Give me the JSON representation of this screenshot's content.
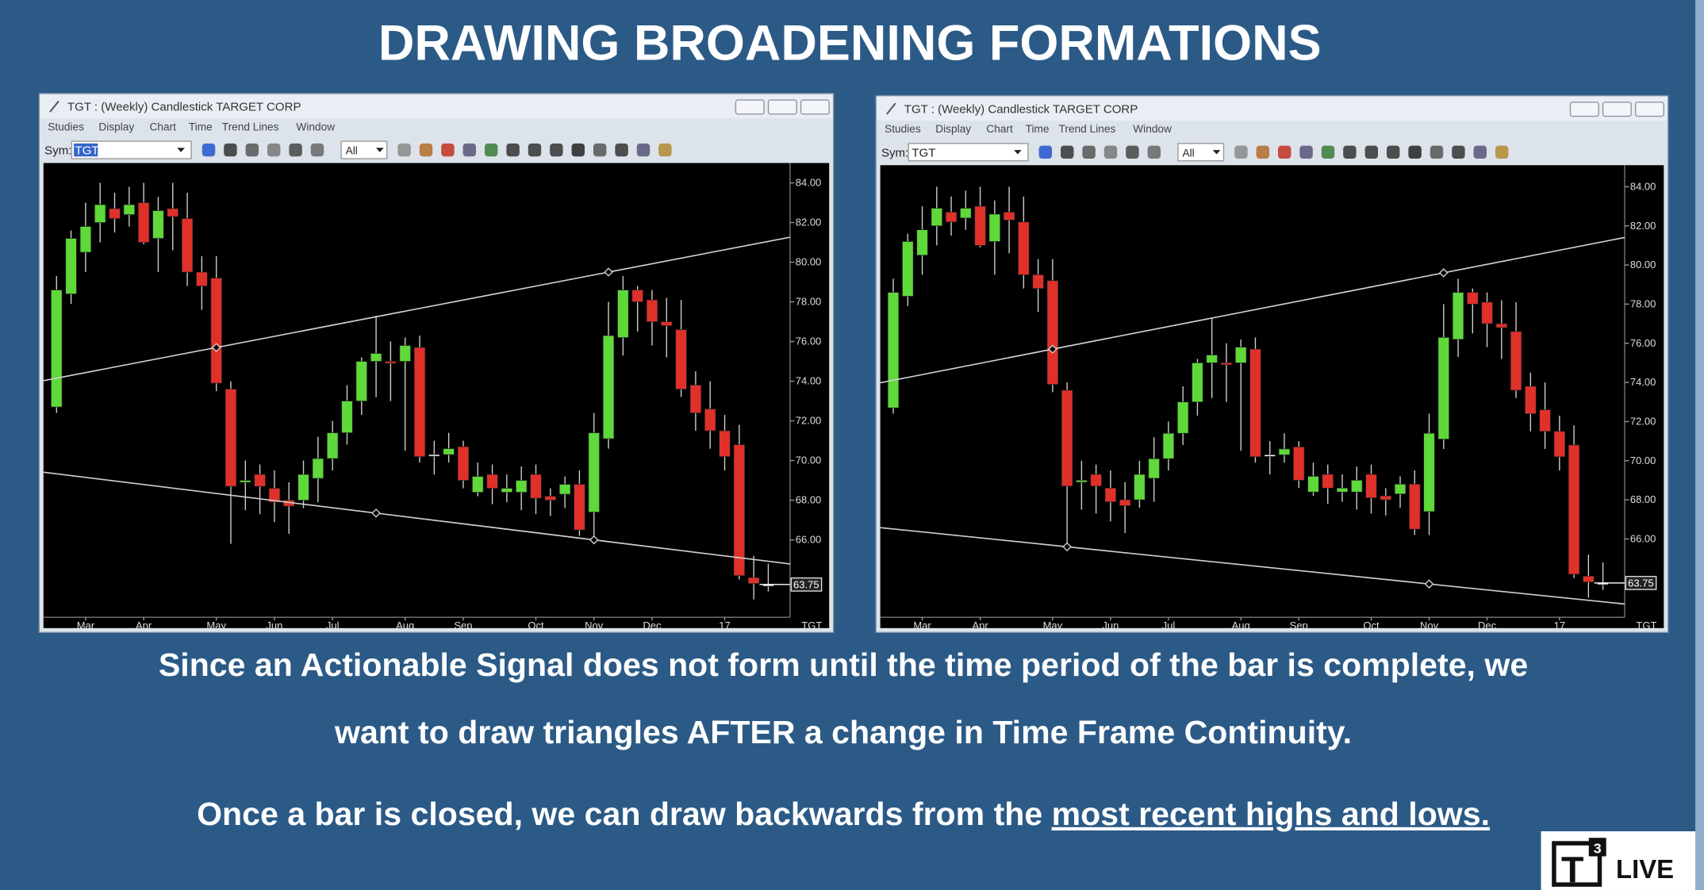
{
  "title": "DRAWING BROADENING FORMATIONS",
  "paragraphs": [
    {
      "lines": [
        "Since an Actionable Signal does not form until the time period of the bar is complete, we",
        "want to draw triangles AFTER a change in Time Frame Continuity."
      ]
    },
    {
      "text": "Once a bar is closed, we can draw backwards from the ",
      "underlined": "most recent highs and lows."
    }
  ],
  "logo": {
    "mark": "T",
    "superscript": "3",
    "text": "LIVE"
  },
  "chart_data": [
    {
      "type": "candlestick",
      "title": "TGT : (Weekly) Candlestick  TARGET CORP",
      "menu": [
        "Studies",
        "Display",
        "Chart",
        "Time",
        "Trend Lines",
        "Window"
      ],
      "symbol_label": "Sym:",
      "symbol": "TGT",
      "period": "All",
      "axis_symbol": "TGT",
      "up_color": "#5fd83a",
      "down_color": "#e0302a",
      "flat_color": "#ffffff",
      "line_color": "#d0d0d0",
      "categories": [
        null,
        null,
        "Mar",
        null,
        null,
        null,
        "Apr",
        null,
        null,
        null,
        null,
        "May",
        null,
        null,
        null,
        "Jun",
        null,
        null,
        null,
        "Jul",
        null,
        null,
        null,
        null,
        "Aug",
        null,
        null,
        null,
        "Sep",
        null,
        null,
        null,
        null,
        "Oct",
        null,
        null,
        null,
        "Nov",
        null,
        null,
        null,
        "Dec",
        null,
        null,
        null,
        null,
        "17",
        null,
        null,
        null
      ],
      "open": [
        72.7,
        78.4,
        80.5,
        82.0,
        82.7,
        82.4,
        83.0,
        81.2,
        82.7,
        82.2,
        79.5,
        79.2,
        73.6,
        68.9,
        69.3,
        68.6,
        68.0,
        68.0,
        69.1,
        70.1,
        71.4,
        73.0,
        75.0,
        75.0,
        75.0,
        75.7,
        70.3,
        70.3,
        70.7,
        68.4,
        69.3,
        68.4,
        68.4,
        69.3,
        68.2,
        68.3,
        68.8,
        67.4,
        71.1,
        76.2,
        78.6,
        78.1,
        77.0,
        76.6,
        73.8,
        72.6,
        71.5,
        70.8,
        64.1,
        63.75
      ],
      "high": [
        79.3,
        81.6,
        83.0,
        84.0,
        83.5,
        83.8,
        84.0,
        83.3,
        84.0,
        83.5,
        80.3,
        80.3,
        74.0,
        70.0,
        69.8,
        69.5,
        68.9,
        70.0,
        71.2,
        72.0,
        73.8,
        75.2,
        77.3,
        76.0,
        76.2,
        76.3,
        71.0,
        71.4,
        71.0,
        69.9,
        69.8,
        69.3,
        69.7,
        69.8,
        68.6,
        69.2,
        69.5,
        72.4,
        78.0,
        79.3,
        78.8,
        78.6,
        78.2,
        78.1,
        74.5,
        74.0,
        72.3,
        71.8,
        65.2,
        64.8
      ],
      "low": [
        72.4,
        77.9,
        79.5,
        81.0,
        81.5,
        81.8,
        80.9,
        79.5,
        80.6,
        78.8,
        77.6,
        73.5,
        65.8,
        67.5,
        67.3,
        66.9,
        66.3,
        67.6,
        67.9,
        69.5,
        70.8,
        72.3,
        73.2,
        73.0,
        70.5,
        69.9,
        69.3,
        69.9,
        68.6,
        68.2,
        67.8,
        67.9,
        67.5,
        67.3,
        67.2,
        67.6,
        66.2,
        66.2,
        70.6,
        75.3,
        76.5,
        75.8,
        75.2,
        73.2,
        71.5,
        70.6,
        69.5,
        64.0,
        63.0,
        63.4
      ],
      "close": [
        78.6,
        81.2,
        81.8,
        82.9,
        82.2,
        82.9,
        81.0,
        82.6,
        82.3,
        79.5,
        78.8,
        73.9,
        68.7,
        69.0,
        68.7,
        67.9,
        67.7,
        69.3,
        70.1,
        71.4,
        73.0,
        75.0,
        75.4,
        74.9,
        75.8,
        70.2,
        70.3,
        70.6,
        69.0,
        69.2,
        68.6,
        68.6,
        69.0,
        68.1,
        68.0,
        68.8,
        66.5,
        71.4,
        76.3,
        78.6,
        78.0,
        77.0,
        76.8,
        73.6,
        72.4,
        71.5,
        70.2,
        64.2,
        63.8,
        63.75
      ],
      "ylim": [
        62.1,
        85.0
      ],
      "yticks": [
        {
          "value": 66,
          "label": "66.00"
        },
        {
          "value": 68,
          "label": "68.00"
        },
        {
          "value": 70,
          "label": "70.00"
        },
        {
          "value": 72,
          "label": "72.00"
        },
        {
          "value": 74,
          "label": "74.00"
        },
        {
          "value": 76,
          "label": "76.00"
        },
        {
          "value": 78,
          "label": "78.00"
        },
        {
          "value": 80,
          "label": "80.00"
        },
        {
          "value": 82,
          "label": "82.00"
        },
        {
          "value": 84,
          "label": "84.00"
        }
      ],
      "last_price": 63.75,
      "trend_lines": [
        {
          "points": [
            [
              11,
              75.7
            ],
            [
              38,
              79.5
            ]
          ]
        },
        {
          "points": [
            [
              22,
              67.35
            ],
            [
              37,
              66.0
            ]
          ]
        }
      ]
    },
    {
      "type": "candlestick",
      "title": "TGT : (Weekly) Candlestick  TARGET CORP",
      "menu": [
        "Studies",
        "Display",
        "Chart",
        "Time",
        "Trend Lines",
        "Window"
      ],
      "symbol_label": "Sym:",
      "symbol": "TGT",
      "period": "All",
      "axis_symbol": "TGT",
      "up_color": "#5fd83a",
      "down_color": "#e0302a",
      "flat_color": "#ffffff",
      "line_color": "#d0d0d0",
      "categories": [
        null,
        null,
        "Mar",
        null,
        null,
        null,
        "Apr",
        null,
        null,
        null,
        null,
        "May",
        null,
        null,
        null,
        "Jun",
        null,
        null,
        null,
        "Jul",
        null,
        null,
        null,
        null,
        "Aug",
        null,
        null,
        null,
        "Sep",
        null,
        null,
        null,
        null,
        "Oct",
        null,
        null,
        null,
        "Nov",
        null,
        null,
        null,
        "Dec",
        null,
        null,
        null,
        null,
        "17",
        null,
        null,
        null
      ],
      "open": [
        72.7,
        78.4,
        80.5,
        82.0,
        82.7,
        82.4,
        83.0,
        81.2,
        82.7,
        82.2,
        79.5,
        79.2,
        73.6,
        68.9,
        69.3,
        68.6,
        68.0,
        68.0,
        69.1,
        70.1,
        71.4,
        73.0,
        75.0,
        75.0,
        75.0,
        75.7,
        70.3,
        70.3,
        70.7,
        68.4,
        69.3,
        68.4,
        68.4,
        69.3,
        68.2,
        68.3,
        68.8,
        67.4,
        71.1,
        76.2,
        78.6,
        78.1,
        77.0,
        76.6,
        73.8,
        72.6,
        71.5,
        70.8,
        64.1,
        63.75
      ],
      "high": [
        79.3,
        81.6,
        83.0,
        84.0,
        83.5,
        83.8,
        84.0,
        83.3,
        84.0,
        83.5,
        80.3,
        80.3,
        74.0,
        70.0,
        69.8,
        69.5,
        68.9,
        70.0,
        71.2,
        72.0,
        73.8,
        75.2,
        77.3,
        76.0,
        76.2,
        76.3,
        71.0,
        71.4,
        71.0,
        69.9,
        69.8,
        69.3,
        69.7,
        69.8,
        68.6,
        69.2,
        69.5,
        72.4,
        78.0,
        79.3,
        78.8,
        78.6,
        78.2,
        78.1,
        74.5,
        74.0,
        72.3,
        71.8,
        65.2,
        64.8
      ],
      "low": [
        72.4,
        77.9,
        79.5,
        81.0,
        81.5,
        81.8,
        80.9,
        79.5,
        80.6,
        78.8,
        77.6,
        73.5,
        65.8,
        67.5,
        67.3,
        66.9,
        66.3,
        67.6,
        67.9,
        69.5,
        70.8,
        72.3,
        73.2,
        73.0,
        70.5,
        69.9,
        69.3,
        69.9,
        68.6,
        68.2,
        67.8,
        67.9,
        67.5,
        67.3,
        67.2,
        67.6,
        66.2,
        66.2,
        70.6,
        75.3,
        76.5,
        75.8,
        75.2,
        73.2,
        71.5,
        70.6,
        69.5,
        64.0,
        63.0,
        63.4
      ],
      "close": [
        78.6,
        81.2,
        81.8,
        82.9,
        82.2,
        82.9,
        81.0,
        82.6,
        82.3,
        79.5,
        78.8,
        73.9,
        68.7,
        69.0,
        68.7,
        67.9,
        67.7,
        69.3,
        70.1,
        71.4,
        73.0,
        75.0,
        75.4,
        74.9,
        75.8,
        70.2,
        70.3,
        70.6,
        69.0,
        69.2,
        68.6,
        68.6,
        69.0,
        68.1,
        68.0,
        68.8,
        66.5,
        71.4,
        76.3,
        78.6,
        78.0,
        77.0,
        76.8,
        73.6,
        72.4,
        71.5,
        70.2,
        64.2,
        63.8,
        63.75
      ],
      "ylim": [
        62.0,
        85.1
      ],
      "yticks": [
        {
          "value": 66,
          "label": "66.00"
        },
        {
          "value": 68,
          "label": "68.00"
        },
        {
          "value": 70,
          "label": "70.00"
        },
        {
          "value": 72,
          "label": "72.00"
        },
        {
          "value": 74,
          "label": "74.00"
        },
        {
          "value": 76,
          "label": "76.00"
        },
        {
          "value": 78,
          "label": "78.00"
        },
        {
          "value": 80,
          "label": "80.00"
        },
        {
          "value": 82,
          "label": "82.00"
        },
        {
          "value": 84,
          "label": "84.00"
        }
      ],
      "last_price": 63.75,
      "trend_lines": [
        {
          "points": [
            [
              11,
              75.7
            ],
            [
              38,
              79.6
            ]
          ]
        },
        {
          "points": [
            [
              12,
              65.6
            ],
            [
              37,
              63.7
            ]
          ]
        }
      ]
    }
  ]
}
